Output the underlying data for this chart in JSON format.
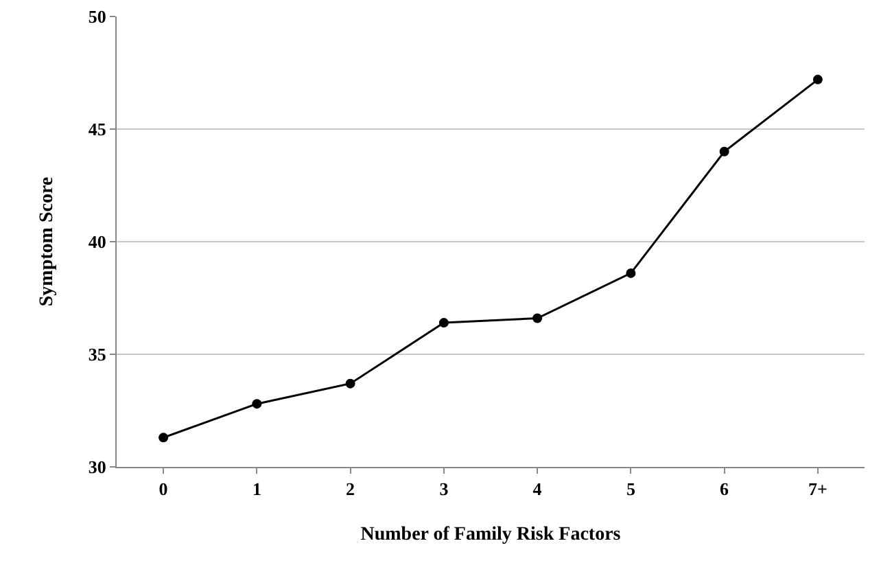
{
  "chart_data": {
    "type": "line",
    "xlabel": "Number of Family Risk Factors",
    "ylabel": "Symptom Score",
    "categories": [
      "0",
      "1",
      "2",
      "3",
      "4",
      "5",
      "6",
      "7+"
    ],
    "series": [
      {
        "color": "#000000",
        "values": [
          31.3,
          32.8,
          33.7,
          36.4,
          36.6,
          38.6,
          44.0,
          47.2
        ]
      }
    ],
    "ylim": [
      30,
      50
    ],
    "yticks": [
      30,
      35,
      40,
      45,
      50
    ],
    "grid": "y",
    "marker": "circle",
    "line_style": "solid"
  }
}
